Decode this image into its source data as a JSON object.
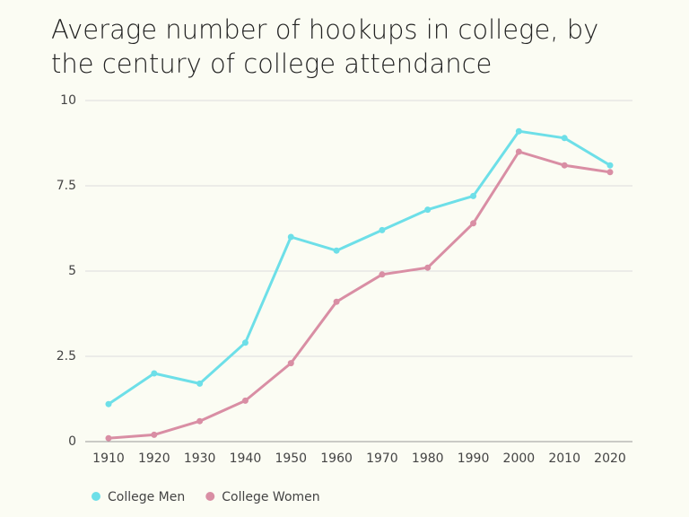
{
  "chart_data": {
    "type": "line",
    "title": "Average number of hookups in college, by the century of college attendance",
    "categories": [
      "1910",
      "1920",
      "1930",
      "1940",
      "1950",
      "1960",
      "1970",
      "1980",
      "1990",
      "2000",
      "2010",
      "2020"
    ],
    "series": [
      {
        "name": "College Men",
        "color": "#6ddfe8",
        "values": [
          1.1,
          2.0,
          1.7,
          2.9,
          6.0,
          5.6,
          6.2,
          6.8,
          7.2,
          9.1,
          8.9,
          8.1
        ]
      },
      {
        "name": "College Women",
        "color": "#d98ea4",
        "values": [
          0.1,
          0.2,
          0.6,
          1.2,
          2.3,
          4.1,
          4.9,
          5.1,
          6.4,
          8.5,
          8.1,
          7.9
        ]
      }
    ],
    "ylim": [
      0,
      10
    ],
    "yticks": [
      0,
      2.5,
      5,
      7.5,
      10
    ],
    "grid": true,
    "legend": "bottom-left"
  }
}
